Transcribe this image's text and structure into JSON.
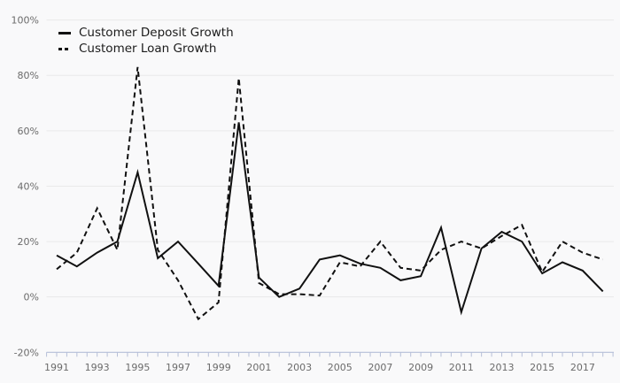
{
  "chart_data": {
    "type": "line",
    "title": "",
    "xlabel": "",
    "ylabel": "",
    "x": [
      1991,
      1992,
      1993,
      1994,
      1995,
      1996,
      1997,
      1998,
      1999,
      2000,
      2001,
      2002,
      2003,
      2004,
      2005,
      2006,
      2007,
      2008,
      2009,
      2010,
      2011,
      2012,
      2013,
      2014,
      2015,
      2016,
      2017,
      2018
    ],
    "series": [
      {
        "name": "Customer Deposit Growth",
        "line_style": "solid",
        "values": [
          15,
          11,
          16,
          20,
          45,
          14,
          20,
          12,
          4,
          63,
          7,
          0,
          3,
          13.5,
          15,
          12,
          10.5,
          6,
          7.5,
          25,
          -5.5,
          17.5,
          23.5,
          20,
          8.5,
          12.5,
          9.5,
          2
        ]
      },
      {
        "name": "Customer Loan Growth",
        "line_style": "dashed",
        "values": [
          10,
          16,
          32,
          17,
          83,
          17,
          6,
          -8,
          -2,
          79,
          5,
          1,
          1,
          0.5,
          12.5,
          11,
          20,
          10.5,
          9.5,
          17,
          20,
          17.5,
          22,
          26,
          9,
          20,
          16,
          13.5
        ]
      }
    ],
    "y_ticks": [
      100,
      80,
      60,
      40,
      20,
      0,
      -20
    ],
    "y_tick_labels": [
      "100%",
      "80%",
      "60%",
      "40%",
      "20%",
      "0%",
      "-20%"
    ],
    "x_tick_labels": [
      "1991",
      "1993",
      "1995",
      "1997",
      "1999",
      "2001",
      "2003",
      "2005",
      "2007",
      "2009",
      "2011",
      "2013",
      "2015",
      "2017"
    ],
    "ylim": [
      -20,
      100
    ],
    "xlim": [
      1990.5,
      2018.5
    ],
    "grid": "horizontal",
    "legend_position": "top-left",
    "colors": {
      "line": "#111111",
      "gridline": "#e9e9e9",
      "axis": "#b6bfd8",
      "tick_label": "#6b6b6b",
      "legend_text": "#1b1b1b",
      "background": "#f9f9fa"
    }
  }
}
